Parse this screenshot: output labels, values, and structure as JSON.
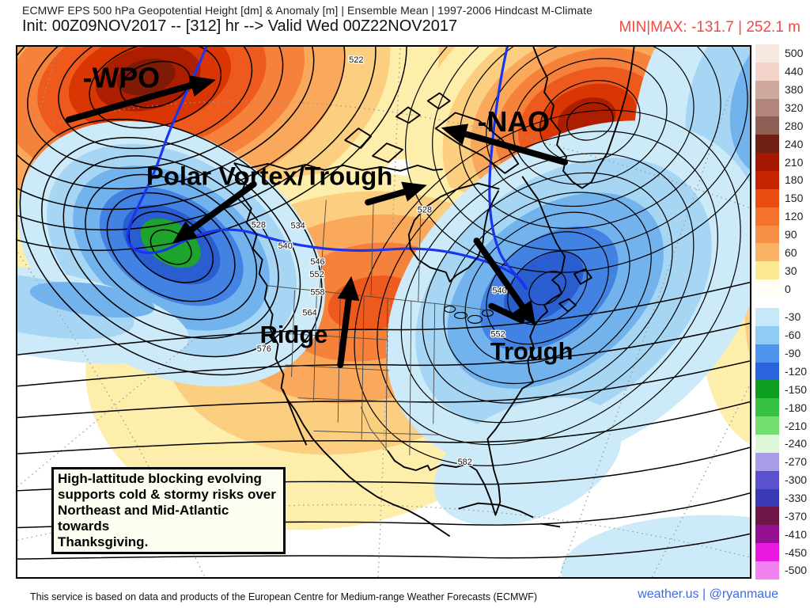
{
  "header": {
    "title": "ECMWF EPS 500 hPa Geopotential Height [dm] & Anomaly [m] | Ensemble Mean | 1997-2006 Hindcast M-Climate",
    "subtitle": "Init: 00Z09NOV2017 -- [312] hr --> Valid Wed 00Z22NOV2017",
    "minmax": "MIN|MAX: -131.7 | 252.1 m",
    "minmax_color": "#f74840"
  },
  "map": {
    "annotations": {
      "wpo": "-WPO",
      "nao": "-NAO",
      "polar_vortex": "Polar Vortex/Trough",
      "ridge": "Ridge",
      "trough": "Trough"
    },
    "contour_labels": [
      "522",
      "528",
      "534",
      "540",
      "546",
      "552",
      "558",
      "564",
      "576",
      "582",
      "540",
      "552",
      "528"
    ],
    "callout": {
      "lines": [
        "High-lattitude blocking evolving",
        "supports cold & stormy risks over",
        "Northeast and Mid-Atlantic towards",
        "Thanksgiving."
      ]
    }
  },
  "legend": {
    "entries": [
      {
        "label": "500",
        "color": "#f8e8e2"
      },
      {
        "label": "440",
        "color": "#f3d4cb"
      },
      {
        "label": "380",
        "color": "#cda89d"
      },
      {
        "label": "320",
        "color": "#b1857b"
      },
      {
        "label": "280",
        "color": "#8c6055"
      },
      {
        "label": "240",
        "color": "#6f2013"
      },
      {
        "label": "210",
        "color": "#a41700"
      },
      {
        "label": "180",
        "color": "#c62300"
      },
      {
        "label": "150",
        "color": "#eb4c12"
      },
      {
        "label": "120",
        "color": "#f4732c"
      },
      {
        "label": "90",
        "color": "#f79046"
      },
      {
        "label": "60",
        "color": "#fab267"
      },
      {
        "label": "30",
        "color": "#fcea93"
      },
      {
        "label": "0",
        "color": "#fffdf4"
      },
      {
        "label": "-30",
        "color": "#c6e8f8"
      },
      {
        "label": "-60",
        "color": "#90cbf4"
      },
      {
        "label": "-90",
        "color": "#4f95ee"
      },
      {
        "label": "-120",
        "color": "#2a64dd"
      },
      {
        "label": "-150",
        "color": "#0d9e20"
      },
      {
        "label": "-180",
        "color": "#38c244"
      },
      {
        "label": "-210",
        "color": "#74df70"
      },
      {
        "label": "-240",
        "color": "#dcf6d8"
      },
      {
        "label": "-270",
        "color": "#a89ce9"
      },
      {
        "label": "-300",
        "color": "#5b50cd"
      },
      {
        "label": "-330",
        "color": "#3a39b6"
      },
      {
        "label": "-370",
        "color": "#6f1747"
      },
      {
        "label": "-410",
        "color": "#921091"
      },
      {
        "label": "-450",
        "color": "#e818e0"
      },
      {
        "label": "-500",
        "color": "#f083f0"
      }
    ]
  },
  "footer": {
    "disclaimer": "This service is based on data and products of the European Centre for Medium-range Weather Forecasts (ECMWF)",
    "credit": "weather.us | @ryanmaue",
    "credit_color": "#3d6be8"
  },
  "chart_data": {
    "type": "heatmap",
    "title": "ECMWF EPS 500 hPa Geopotential Height [dm] & Anomaly [m] | Ensemble Mean | 1997-2006 Hindcast M-Climate",
    "subtitle": "Init: 00Z09NOV2017 -- [312] hr --> Valid Wed 00Z22NOV2017",
    "variable": "500 hPa geopotential height anomaly [m] (shaded) with ensemble-mean height contours [dm]",
    "region": "North America / North Atlantic / North Pacific",
    "anomaly_min_m": -131.7,
    "anomaly_max_m": 252.1,
    "colorbar_levels_m": [
      500,
      440,
      380,
      320,
      280,
      240,
      210,
      180,
      150,
      120,
      90,
      60,
      30,
      0,
      -30,
      -60,
      -90,
      -120,
      -150,
      -180,
      -210,
      -240,
      -270,
      -300,
      -330,
      -370,
      -410,
      -450,
      -500
    ],
    "height_contour_labels_dm": [
      522,
      528,
      534,
      540,
      546,
      552,
      558,
      564,
      576,
      582
    ],
    "legend_position": "right",
    "features": [
      {
        "label": "-WPO",
        "region": "Bering Sea / Alaska",
        "anomaly_sign": "positive"
      },
      {
        "label": "-NAO",
        "region": "Greenland / Davis Strait",
        "anomaly_sign": "positive"
      },
      {
        "label": "Polar Vortex/Trough",
        "region": "Gulf of Alaska / NE Pacific",
        "anomaly_sign": "negative"
      },
      {
        "label": "Ridge",
        "region": "Central United States",
        "anomaly_sign": "positive"
      },
      {
        "label": "Trough",
        "region": "Eastern US / Western Atlantic",
        "anomaly_sign": "negative"
      }
    ]
  }
}
